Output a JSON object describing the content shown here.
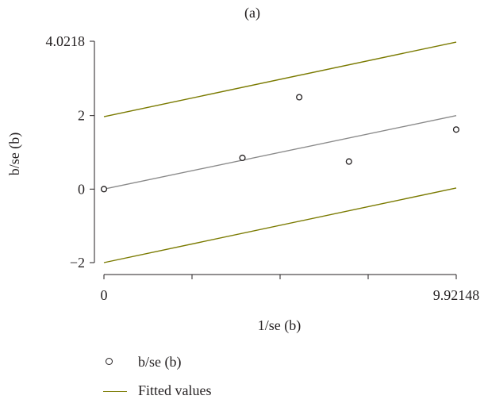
{
  "chart_data": {
    "type": "scatter",
    "title": "(a)",
    "xlabel": "1/se (b)",
    "ylabel": "b/se (b)",
    "xlim": [
      0,
      9.92148
    ],
    "ylim": [
      -2,
      4.0218
    ],
    "x_ticks": [
      {
        "value": 0,
        "label": "0"
      },
      {
        "value": 2.48037,
        "label": ""
      },
      {
        "value": 4.96074,
        "label": ""
      },
      {
        "value": 7.44111,
        "label": ""
      },
      {
        "value": 9.92148,
        "label": "9.92148"
      }
    ],
    "y_ticks": [
      {
        "value": -2,
        "label": "−2"
      },
      {
        "value": 0,
        "label": "0"
      },
      {
        "value": 2,
        "label": "2"
      },
      {
        "value": 4.0218,
        "label": "4.0218"
      }
    ],
    "series": [
      {
        "name": "b/se (b)",
        "kind": "scatter",
        "points": [
          {
            "x": 0,
            "y": 0
          },
          {
            "x": 3.9,
            "y": 0.85
          },
          {
            "x": 5.5,
            "y": 2.5
          },
          {
            "x": 6.9,
            "y": 0.75
          },
          {
            "x": 9.92,
            "y": 1.62
          }
        ]
      },
      {
        "name": "",
        "kind": "line",
        "color": "#8a8a8a",
        "points": [
          {
            "x": 0,
            "y": 0
          },
          {
            "x": 9.92148,
            "y": 2.0
          }
        ]
      },
      {
        "name": "Fitted values",
        "kind": "line",
        "color": "#7a7a00",
        "points": [
          {
            "x": 0,
            "y": 1.97
          },
          {
            "x": 9.92148,
            "y": 4.0
          }
        ]
      },
      {
        "name": "Fitted values",
        "kind": "line",
        "color": "#7a7a00",
        "points": [
          {
            "x": 0,
            "y": -2.0
          },
          {
            "x": 9.92148,
            "y": 0.03
          }
        ]
      }
    ],
    "legend": {
      "position": "bottom-left",
      "items": [
        {
          "label": "b/se (b)",
          "marker": "circle"
        },
        {
          "label": "Fitted values",
          "marker": "line",
          "color": "#7a7a00"
        }
      ]
    },
    "grid": false
  }
}
